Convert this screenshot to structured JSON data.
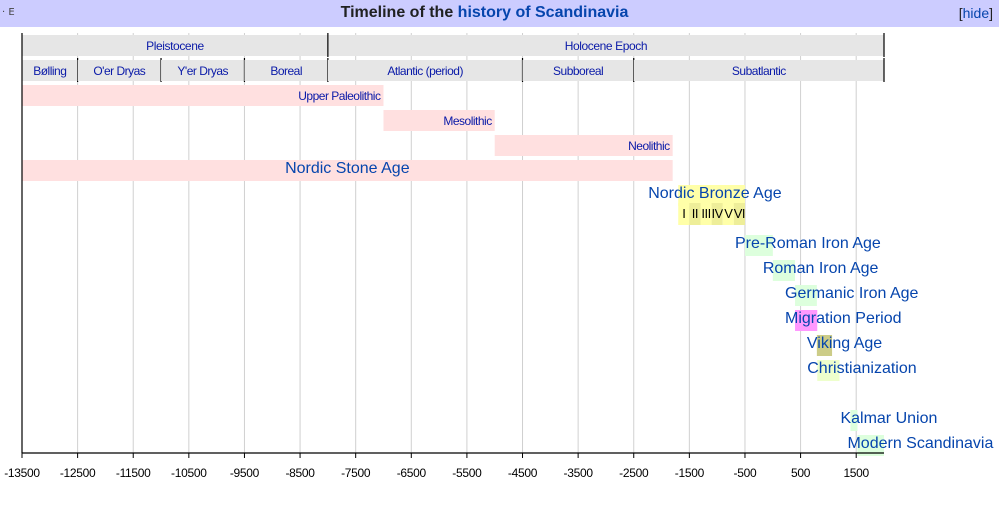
{
  "navbox": {
    "corner_label": "· E",
    "title_prefix": "Timeline of the ",
    "title_link": "history of Scandinavia",
    "hide_open": "[",
    "hide_label": "hide",
    "hide_close": "]"
  },
  "chart_data": {
    "type": "timeline",
    "xlim": [
      -13500,
      2000
    ],
    "x_ticks": [
      -13500,
      -12500,
      -11500,
      -10500,
      -9500,
      -8500,
      -7500,
      -6500,
      -5500,
      -4500,
      -3500,
      -2500,
      -1500,
      -500,
      500,
      1500
    ],
    "grid": true,
    "epochs": [
      {
        "label": "Pleistocene",
        "start": -13500,
        "end": -8000
      },
      {
        "label": "Holocene Epoch",
        "start": -8000,
        "end": 2000
      }
    ],
    "stages": [
      {
        "label": "Bølling",
        "start": -13500,
        "end": -12500
      },
      {
        "label": "O'er Dryas",
        "start": -12500,
        "end": -11000
      },
      {
        "label": "Y'er Dryas",
        "start": -11000,
        "end": -9500
      },
      {
        "label": "Boreal",
        "start": -9500,
        "end": -8000
      },
      {
        "label": "Atlantic (period)",
        "start": -8000,
        "end": -4500
      },
      {
        "label": "Subboreal",
        "start": -4500,
        "end": -2500
      },
      {
        "label": "Subatlantic",
        "start": -2500,
        "end": 2000
      }
    ],
    "periods": [
      {
        "label": "Upper Paleolithic",
        "start": -13500,
        "end": -7000,
        "color": "#ffe0e0",
        "kind": "small"
      },
      {
        "label": "Mesolithic",
        "start": -7000,
        "end": -5000,
        "color": "#ffe0e0",
        "kind": "small"
      },
      {
        "label": "Neolithic",
        "start": -5000,
        "end": -1800,
        "color": "#ffe0e0",
        "kind": "small"
      },
      {
        "label": "Nordic Stone Age",
        "start": -13500,
        "end": -1800,
        "color": "#ffe0e0",
        "kind": "big",
        "anchor": "middle"
      },
      {
        "label": "Nordic Bronze Age",
        "start": -1700,
        "end": -500,
        "color": "#ffffa8",
        "kind": "big",
        "anchor": "left-overflow"
      },
      {
        "label": "Pre-Roman Iron Age",
        "start": -500,
        "end": 1,
        "color": "#ddffdd",
        "kind": "big",
        "anchor": "right"
      },
      {
        "label": "Roman Iron Age",
        "start": 1,
        "end": 400,
        "color": "#ddffdd",
        "kind": "big",
        "anchor": "right"
      },
      {
        "label": "Germanic Iron Age",
        "start": 400,
        "end": 793,
        "color": "#ddffdd",
        "kind": "big",
        "anchor": "right"
      },
      {
        "label": "Migration Period",
        "start": 400,
        "end": 800,
        "color": "#ff99ff",
        "kind": "big",
        "anchor": "right"
      },
      {
        "label": "Viking Age",
        "start": 793,
        "end": 1066,
        "color": "#cccc88",
        "kind": "big",
        "anchor": "right"
      },
      {
        "label": "Christianization",
        "start": 800,
        "end": 1200,
        "color": "#eeffcc",
        "kind": "big",
        "anchor": "right"
      },
      {
        "label": "Kalmar Union",
        "start": 1397,
        "end": 1523,
        "color": "#ddffdd",
        "kind": "big",
        "anchor": "right"
      },
      {
        "label": "Modern Scandinavia",
        "start": 1523,
        "end": 2000,
        "color": "#ddffdd",
        "kind": "big",
        "anchor": "right"
      }
    ],
    "bronze_subperiods": [
      {
        "label": "I",
        "start": -1700,
        "end": -1500,
        "color": "#ffffa8"
      },
      {
        "label": "II",
        "start": -1500,
        "end": -1300,
        "color": "#eeee99"
      },
      {
        "label": "III",
        "start": -1300,
        "end": -1100,
        "color": "#ffffa8"
      },
      {
        "label": "IV",
        "start": -1100,
        "end": -900,
        "color": "#eeee99"
      },
      {
        "label": "V",
        "start": -900,
        "end": -700,
        "color": "#ffffa8"
      },
      {
        "label": "VI",
        "start": -700,
        "end": -500,
        "color": "#eeee99"
      }
    ]
  }
}
